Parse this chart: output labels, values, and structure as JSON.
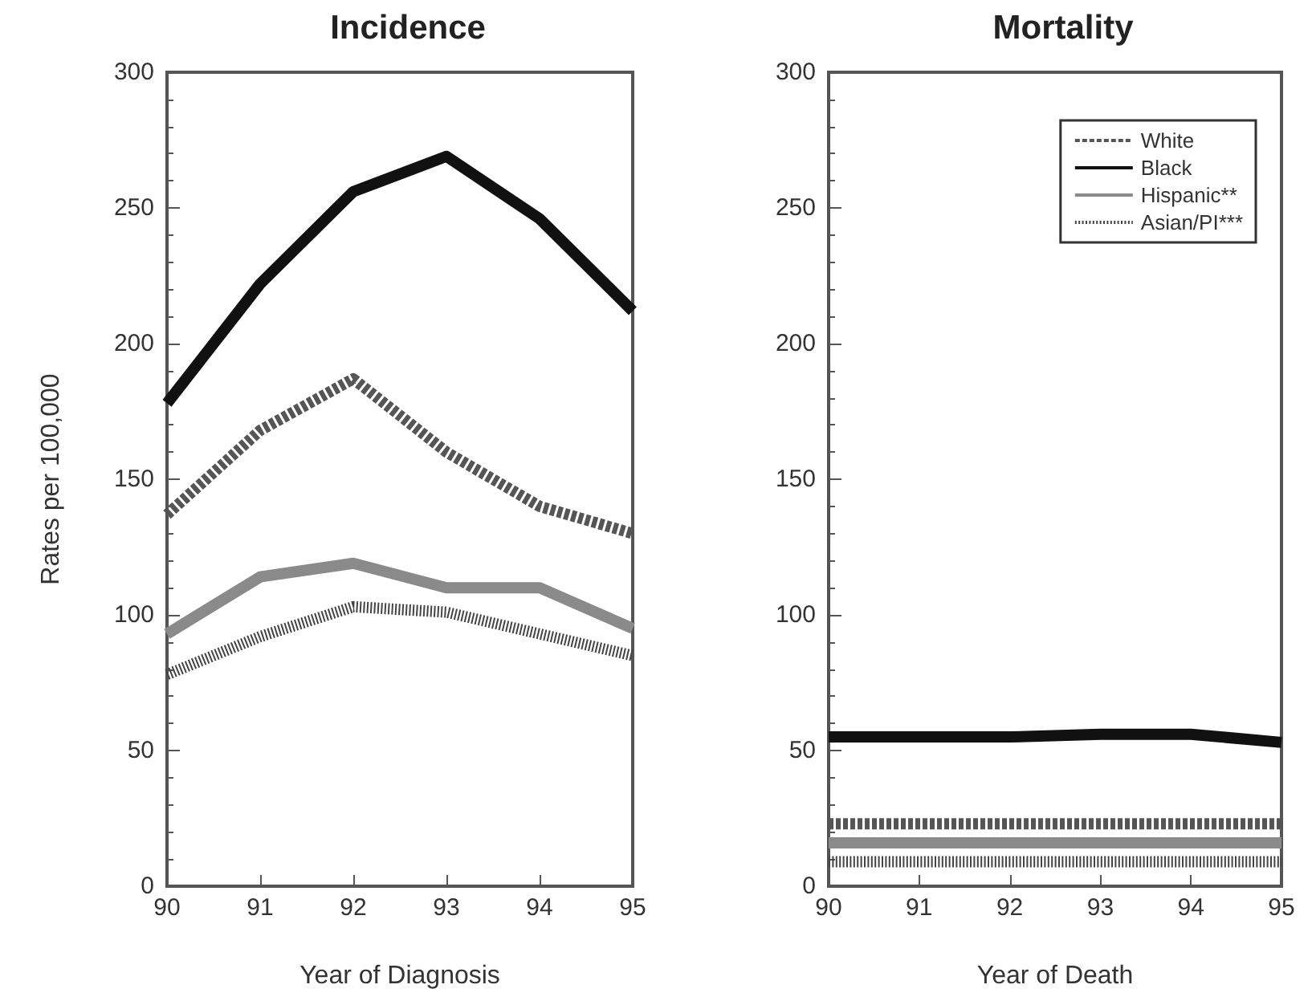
{
  "chart_data": [
    {
      "type": "line",
      "title": "Incidence",
      "xlabel": "Year of Diagnosis",
      "ylabel": "Rates per 100,000",
      "x": [
        90,
        91,
        92,
        93,
        94,
        95
      ],
      "xlim": [
        90,
        95
      ],
      "xticks": [
        90,
        91,
        92,
        93,
        94,
        95
      ],
      "ylim": [
        0,
        300
      ],
      "yticks": [
        0,
        50,
        100,
        150,
        200,
        250,
        300
      ],
      "grid": false,
      "legend": false,
      "marker": "none",
      "series": [
        {
          "color": "#555555",
          "line_style": "dashed",
          "values": [
            137,
            168,
            187,
            160,
            140,
            130
          ]
        },
        {
          "color": "#111111",
          "line_style": "solid",
          "values": [
            178,
            222,
            256,
            269,
            246,
            212
          ]
        },
        {
          "color": "#8a8a8a",
          "line_style": "solid",
          "values": [
            93,
            114,
            119,
            110,
            110,
            95
          ]
        },
        {
          "color": "#444444",
          "line_style": "dotted",
          "values": [
            78,
            92,
            103,
            101,
            93,
            85
          ]
        }
      ]
    },
    {
      "type": "line",
      "title": "Mortality",
      "xlabel": "Year of Death",
      "x": [
        90,
        91,
        92,
        93,
        94,
        95
      ],
      "xlim": [
        90,
        95
      ],
      "xticks": [
        90,
        91,
        92,
        93,
        94,
        95
      ],
      "ylim": [
        0,
        300
      ],
      "yticks": [
        0,
        50,
        100,
        150,
        200,
        250,
        300
      ],
      "grid": false,
      "legend": "top right",
      "marker": "none",
      "series": [
        {
          "name": "White",
          "color": "#555555",
          "line_style": "dashed",
          "values": [
            23,
            23,
            23,
            23,
            23,
            23
          ]
        },
        {
          "name": "Black",
          "color": "#111111",
          "line_style": "solid",
          "values": [
            55,
            55,
            55,
            56,
            56,
            53
          ]
        },
        {
          "name": "Hispanic**",
          "color": "#8a8a8a",
          "line_style": "solid",
          "values": [
            16,
            16,
            16,
            16,
            16,
            16
          ]
        },
        {
          "name": "Asian/PI***",
          "color": "#444444",
          "line_style": "dotted",
          "values": [
            9,
            9,
            9,
            9,
            9,
            9
          ]
        }
      ]
    }
  ]
}
